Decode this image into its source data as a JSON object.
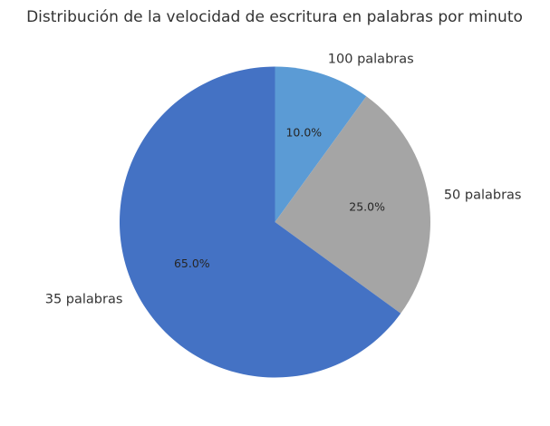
{
  "chart_data": {
    "type": "pie",
    "title": "Distribución de la velocidad de escritura en palabras por minuto",
    "start_angle_deg": 90,
    "direction": "clockwise",
    "slices": [
      {
        "label": "100 palabras",
        "value": 10,
        "pct_label": "10.0%",
        "color": "#5b9bd5"
      },
      {
        "label": "50 palabras",
        "value": 25,
        "pct_label": "25.0%",
        "color": "#a5a5a5"
      },
      {
        "label": "35 palabras",
        "value": 65,
        "pct_label": "65.0%",
        "color": "#4472c4"
      }
    ]
  }
}
